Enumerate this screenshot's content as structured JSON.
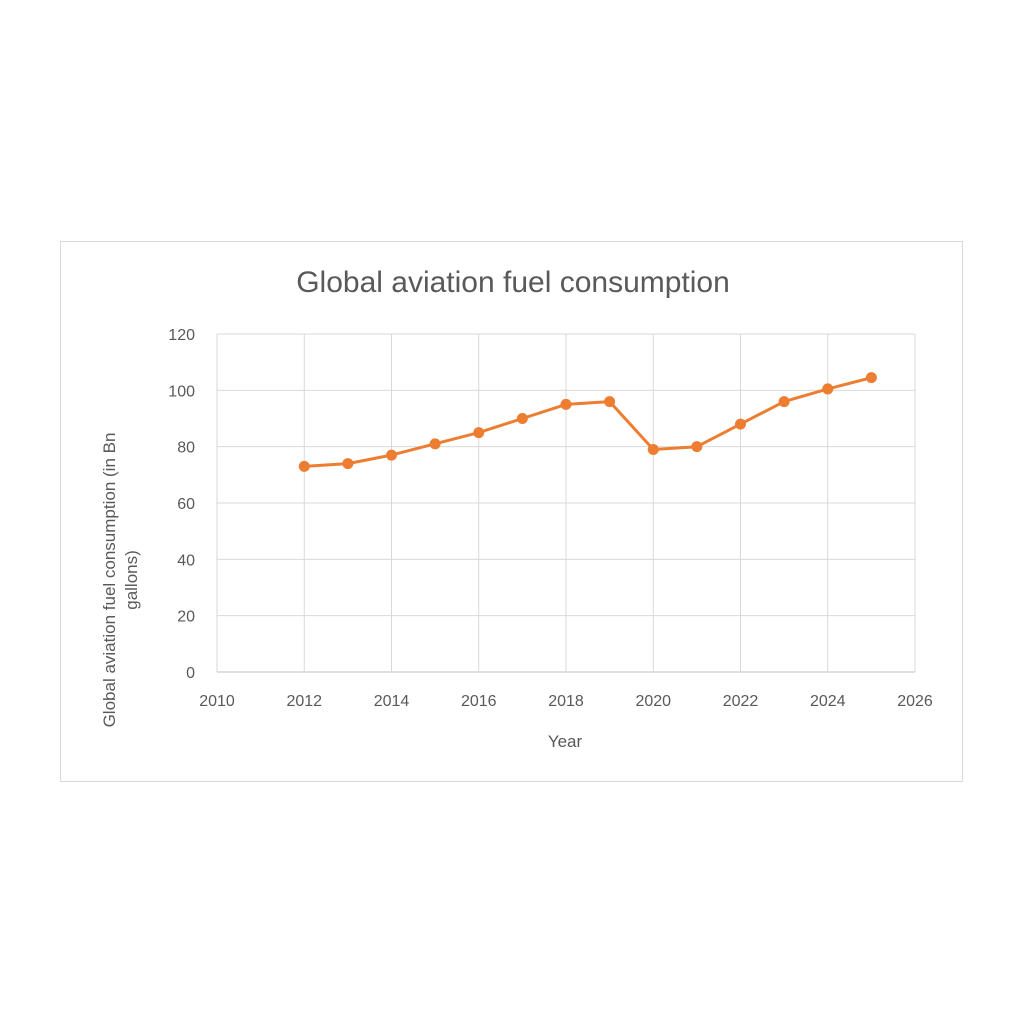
{
  "chart_data": {
    "type": "scatter",
    "title": "Global aviation fuel consumption",
    "xlabel": "Year",
    "ylabel_lines": [
      "Global aviation fuel consumption (in Bn",
      "gallons)"
    ],
    "xlim": [
      2010,
      2026
    ],
    "ylim": [
      0,
      120
    ],
    "xticks": [
      2010,
      2012,
      2014,
      2016,
      2018,
      2020,
      2022,
      2024,
      2026
    ],
    "yticks": [
      0,
      20,
      40,
      60,
      80,
      100,
      120
    ],
    "grid": true,
    "legend": "none",
    "series_color": "#ed7d31",
    "series": [
      {
        "x": [
          2012,
          2013,
          2014,
          2015,
          2016,
          2017,
          2018,
          2019,
          2020,
          2021,
          2022,
          2023,
          2024,
          2025
        ],
        "y": [
          73,
          74,
          77,
          81,
          85,
          90,
          95,
          96,
          79,
          80,
          88,
          96,
          100.5,
          104.5
        ]
      }
    ]
  }
}
